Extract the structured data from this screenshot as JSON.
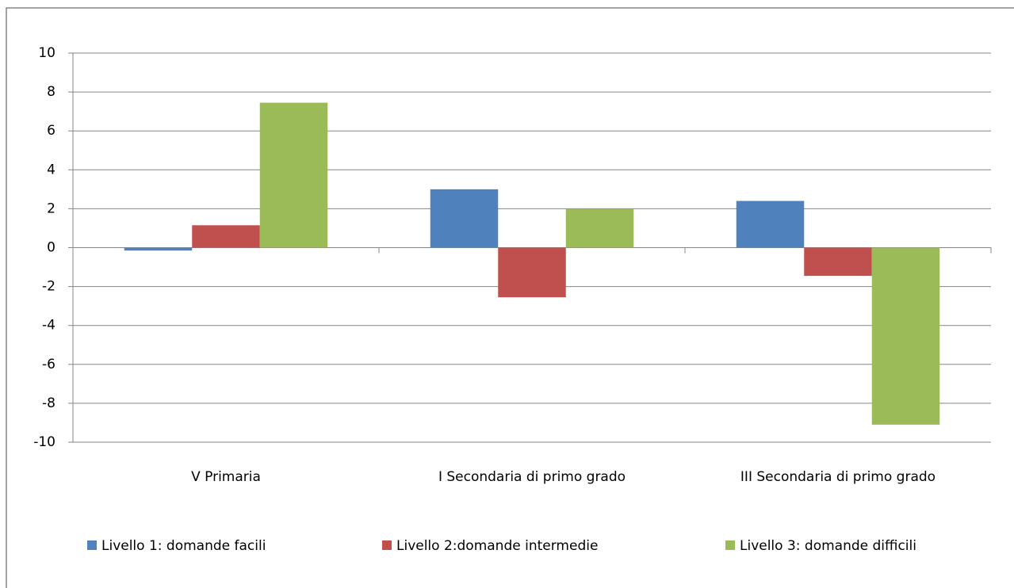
{
  "chart_data": {
    "type": "bar",
    "categories": [
      "V Primaria",
      "I Secondaria di primo grado",
      "III Secondaria di primo grado"
    ],
    "series": [
      {
        "name": "Livello 1: domande facili",
        "color": "#4f81bd",
        "values": [
          -0.15,
          3.0,
          2.4
        ]
      },
      {
        "name": "Livello 2:domande intermedie",
        "color": "#c0504d",
        "values": [
          1.15,
          -2.55,
          -1.45
        ]
      },
      {
        "name": "Livello 3: domande difficili",
        "color": "#9bbb59",
        "values": [
          7.45,
          2.0,
          -9.1
        ]
      }
    ],
    "ylim": [
      -10,
      10
    ],
    "yticks": [
      -10,
      -8,
      -6,
      -4,
      -2,
      0,
      2,
      4,
      6,
      8,
      10
    ],
    "grid": true,
    "legend": "bottom"
  }
}
